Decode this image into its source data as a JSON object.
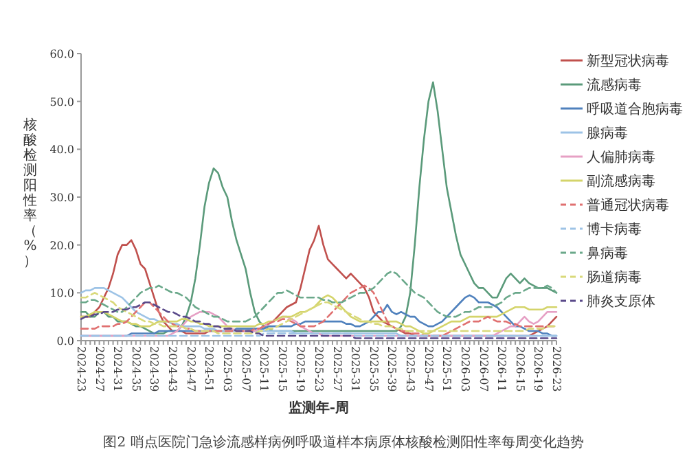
{
  "chart_data": {
    "type": "line",
    "xlabel": "监测年-周",
    "ylabel": "核酸检测阳性率（%）",
    "annotations": [
      "图2 哨点医院门急诊流感样病例呼吸道样本病原体核酸检测阳性率每周变化趋势"
    ],
    "ylim": [
      0,
      60
    ],
    "yticks": [
      {
        "value": 0,
        "label": "0.0"
      },
      {
        "value": 10,
        "label": "10.0"
      },
      {
        "value": 20,
        "label": "20.0"
      },
      {
        "value": 30,
        "label": "30.0"
      },
      {
        "value": 40,
        "label": "40.0"
      },
      {
        "value": 50,
        "label": "50.0"
      },
      {
        "value": 60,
        "label": "60.0"
      }
    ],
    "grid": false,
    "legend": "right",
    "marker": "none",
    "categories": [
      "2024-23",
      null,
      null,
      null,
      "2024-27",
      null,
      null,
      null,
      "2024-31",
      null,
      null,
      null,
      "2024-35",
      null,
      null,
      null,
      "2024-39",
      null,
      null,
      null,
      "2024-43",
      null,
      null,
      null,
      "2024-47",
      null,
      null,
      null,
      "2024-51",
      null,
      null,
      null,
      "2025-03",
      null,
      null,
      null,
      "2025-07",
      null,
      null,
      null,
      "2025-11",
      null,
      null,
      null,
      "2025-15",
      null,
      null,
      null,
      "2025-19",
      null,
      null,
      null,
      "2025-23",
      null,
      null,
      null,
      "2025-27",
      null,
      null,
      null,
      "2025-31",
      null,
      null,
      null,
      "2025-35",
      null,
      null,
      null,
      "2025-39",
      null,
      null,
      null,
      "2025-43",
      null,
      null,
      null,
      "2025-47",
      null,
      null,
      null,
      "2025-51",
      null,
      null,
      null,
      "2026-03",
      null,
      null,
      null,
      "2026-07",
      null,
      null,
      null,
      "2026-11",
      null,
      null,
      null,
      "2026-15",
      null,
      null,
      null,
      "2026-19",
      null,
      null,
      null,
      "2026-23"
    ],
    "series": [
      {
        "name": "新型冠状病毒",
        "color": "#c0504d",
        "line_style": "solid",
        "values": [
          5,
          5,
          5,
          6,
          7,
          9,
          11,
          14,
          18,
          20,
          20,
          21,
          19,
          16,
          15,
          12,
          9,
          6,
          4,
          3,
          2,
          2,
          2,
          1.5,
          1.5,
          1.5,
          1.5,
          1.5,
          2,
          2,
          2,
          2,
          2,
          2,
          2,
          2,
          2,
          2,
          2,
          2.5,
          3,
          3.5,
          4,
          5,
          6,
          7,
          7.5,
          8,
          11,
          15,
          19,
          21,
          24,
          20,
          17,
          16,
          15,
          14,
          13,
          14,
          13,
          12,
          11,
          9,
          6,
          5,
          4,
          3.5,
          3,
          2.5,
          2,
          1.5,
          1.5,
          1,
          1,
          1,
          1,
          1,
          1,
          1,
          1,
          1,
          1,
          1,
          1,
          1,
          1,
          1,
          1,
          1,
          1,
          1,
          1,
          1,
          1,
          1,
          1,
          1,
          1,
          1.5,
          2,
          2.5,
          3,
          4,
          5
        ]
      },
      {
        "name": "流感病毒",
        "color": "#5a9a7a",
        "line_style": "solid",
        "values": [
          6,
          6,
          5,
          5,
          6,
          6,
          5,
          5,
          4,
          4,
          4,
          3.5,
          3,
          3,
          2.5,
          2,
          1.5,
          1.5,
          1.5,
          2,
          2,
          2,
          3,
          5,
          8,
          13,
          20,
          28,
          33,
          36,
          35,
          32,
          30,
          25,
          21,
          18,
          15,
          10,
          6,
          4,
          3,
          2.5,
          2,
          2,
          2,
          2,
          2,
          2,
          2,
          2,
          2,
          2,
          2,
          2,
          2,
          2,
          2,
          2,
          2,
          2,
          2,
          2,
          2,
          2,
          2,
          2,
          2,
          2,
          2,
          2,
          3,
          5,
          10,
          20,
          32,
          42,
          50,
          54,
          48,
          40,
          32,
          27,
          22,
          18,
          16,
          14,
          12,
          11,
          11,
          10,
          9,
          9,
          11,
          13,
          14,
          13,
          12,
          13,
          12,
          11.5,
          11,
          11,
          11,
          10.5,
          10
        ]
      },
      {
        "name": "呼吸道合胞病毒",
        "color": "#4f81bd",
        "line_style": "solid",
        "values": [
          1,
          1,
          1,
          1,
          1,
          1,
          1,
          1,
          1,
          1,
          1,
          1.5,
          1.5,
          1.5,
          1.5,
          1.5,
          1.5,
          2,
          2,
          2,
          2,
          2,
          2,
          2,
          2,
          2,
          2,
          2,
          2,
          2,
          2,
          2,
          2,
          2,
          2.5,
          2.5,
          2.5,
          2.5,
          2.5,
          2.5,
          2.5,
          3,
          3,
          3,
          3,
          3,
          3,
          3.5,
          3.5,
          4,
          4,
          4,
          4,
          4,
          4,
          4,
          4,
          4,
          3.5,
          3.5,
          3,
          3,
          3.5,
          4,
          5,
          6,
          6,
          7.5,
          6,
          5.5,
          6,
          5.5,
          5,
          5,
          4,
          3.5,
          3,
          3,
          3.5,
          4,
          5,
          6,
          7,
          8,
          9,
          9.5,
          9,
          8,
          8,
          8,
          7.5,
          7,
          6,
          5,
          4,
          3,
          3,
          2.5,
          2,
          2,
          2,
          1.5,
          1.5,
          1,
          1
        ]
      },
      {
        "name": "腺病毒",
        "color": "#9dc3e6",
        "line_style": "solid",
        "values": [
          10,
          10.5,
          10.5,
          11,
          11,
          11,
          10.5,
          10,
          9.5,
          9,
          8,
          7,
          6,
          5.5,
          5,
          4.5,
          4.5,
          4,
          4,
          4,
          3.5,
          3.5,
          3,
          3,
          3,
          3,
          3,
          2.5,
          2.5,
          2.5,
          2,
          2,
          2,
          2,
          2,
          2,
          2,
          2,
          2,
          2,
          2,
          2,
          2,
          2,
          2,
          2,
          2,
          1.5,
          1.5,
          1.5,
          1.5,
          1.5,
          1.5,
          1.5,
          1.5,
          1.5,
          1.5,
          1.5,
          1.5,
          1.5,
          1.5,
          1.5,
          1.5,
          1.5,
          1.5,
          1.5,
          1.5,
          1.5,
          1.5,
          1.5,
          1,
          1,
          1,
          1,
          1,
          1,
          1,
          1,
          1,
          1,
          1,
          1,
          1,
          1,
          1,
          1,
          1,
          1,
          1,
          1,
          1,
          1,
          1,
          1,
          1,
          1,
          1,
          1,
          1,
          1,
          1,
          1,
          1,
          1,
          1
        ]
      },
      {
        "name": "人偏肺病毒",
        "color": "#e6a0c4",
        "line_style": "solid",
        "values": [
          1,
          1,
          1,
          1,
          1,
          1,
          1,
          1,
          1,
          1,
          1,
          1,
          1,
          1,
          1,
          1,
          1,
          1,
          1,
          1,
          1.5,
          2,
          3,
          4,
          5,
          5.5,
          6,
          6,
          6,
          5.5,
          5,
          4,
          3,
          2.5,
          2,
          2,
          2,
          2,
          2,
          2.5,
          3,
          3.5,
          4,
          4.5,
          5,
          5,
          4.5,
          4,
          3,
          2.5,
          2,
          1.5,
          1.5,
          1,
          1,
          1,
          1,
          1,
          1,
          1,
          1,
          1,
          1,
          1,
          1,
          1,
          1,
          1,
          1,
          1,
          1,
          1,
          1,
          1,
          1,
          1,
          1,
          1,
          1,
          1,
          1,
          1,
          1,
          1,
          1,
          1,
          1,
          1,
          1,
          1,
          1,
          1.5,
          2,
          2.5,
          3,
          3,
          4,
          5,
          4,
          3.5,
          4,
          5,
          6,
          6,
          6
        ]
      },
      {
        "name": "副流感病毒",
        "color": "#d4d46a",
        "line_style": "solid",
        "values": [
          5,
          5,
          5.5,
          6,
          6,
          6,
          5.5,
          5,
          4.5,
          4,
          4,
          3.5,
          3.5,
          3,
          3,
          3,
          3.5,
          4,
          4,
          4,
          4,
          4,
          4.5,
          4.5,
          4,
          4,
          3.5,
          3.5,
          3,
          3,
          3,
          3,
          3,
          3,
          3,
          3,
          3,
          3,
          3,
          3.5,
          3.5,
          4,
          4,
          4.5,
          5,
          5,
          5,
          5.5,
          6,
          6,
          6.5,
          7,
          8,
          9,
          9.5,
          9,
          8,
          7,
          6,
          5,
          4.5,
          4,
          4,
          4,
          4,
          4,
          4,
          4,
          4,
          4,
          3.5,
          3,
          3,
          2.5,
          2,
          1.5,
          1.5,
          2,
          2.5,
          3,
          3.5,
          4,
          4,
          4,
          4.5,
          5,
          5,
          5,
          5,
          5,
          5,
          5,
          5.5,
          6,
          6.5,
          7,
          7,
          7,
          6.5,
          6.5,
          6.5,
          6.5,
          7,
          7,
          7
        ]
      },
      {
        "name": "普通冠状病毒",
        "color": "#e07070",
        "line_style": "dashed",
        "values": [
          2.5,
          2.5,
          2.5,
          2.5,
          3,
          3,
          3,
          3,
          3.5,
          3.5,
          4,
          5,
          6,
          7,
          8,
          8,
          7,
          6,
          5,
          4,
          3.5,
          3,
          3,
          2.5,
          2.5,
          2,
          2,
          2,
          2,
          2,
          2,
          2,
          2,
          2,
          2,
          2,
          2,
          2,
          2.5,
          2.5,
          3,
          3.5,
          4,
          4,
          4.5,
          4.5,
          4,
          3.5,
          3,
          3,
          3,
          3,
          3.5,
          4,
          5,
          6,
          7,
          8,
          9,
          10,
          10.5,
          11,
          11.5,
          11,
          10,
          8,
          6,
          4,
          3,
          2.5,
          2,
          2,
          1.5,
          1.5,
          1.5,
          1,
          1,
          1,
          1,
          1,
          1.5,
          2,
          2.5,
          3,
          3.5,
          4,
          4,
          4,
          4.5,
          5,
          4.5,
          4,
          4,
          4,
          3.5,
          3.5,
          3,
          3,
          3,
          3,
          3,
          3,
          3,
          3,
          3
        ]
      },
      {
        "name": "博卡病毒",
        "color": "#9dc3e6",
        "line_style": "dashed",
        "values": [
          1,
          1,
          1,
          1,
          1,
          1,
          1,
          1,
          1,
          1,
          1,
          1,
          1,
          1,
          1,
          1,
          1,
          1,
          1,
          1,
          1,
          1,
          1,
          1,
          1,
          1,
          1,
          1,
          1,
          1,
          1,
          1,
          1,
          1,
          1,
          1,
          1,
          1,
          1,
          1,
          1.5,
          1.5,
          1.5,
          1.5,
          1.5,
          1.5,
          1.5,
          1.5,
          1.5,
          1.5,
          1.5,
          1.5,
          1.5,
          1.5,
          1.5,
          1.5,
          1.5,
          1.5,
          1.5,
          1.5,
          1,
          1,
          1,
          1,
          1,
          1,
          1,
          1,
          1,
          1,
          1,
          1,
          1,
          1,
          1,
          1,
          1,
          1,
          1,
          1,
          1,
          1,
          1,
          1,
          1,
          1,
          1,
          1,
          1,
          1,
          1,
          1,
          1,
          1,
          1,
          1,
          1,
          1,
          1,
          1,
          1,
          1,
          1,
          1,
          1
        ]
      },
      {
        "name": "鼻病毒",
        "color": "#6aa88a",
        "line_style": "dashed",
        "values": [
          8,
          8,
          8.5,
          8.5,
          8,
          7.5,
          7,
          6.5,
          6,
          6,
          7,
          8,
          9,
          10,
          10.5,
          11,
          11,
          11.5,
          11,
          10.5,
          10,
          10,
          9.5,
          9,
          8,
          7,
          6.5,
          6,
          5.5,
          5,
          5,
          4.5,
          4,
          4,
          4,
          4,
          4,
          4.5,
          5,
          6,
          7,
          8,
          9,
          10,
          10,
          10.5,
          10,
          9.5,
          9,
          9,
          9,
          9,
          9,
          8.5,
          8.5,
          8,
          8,
          8,
          8.5,
          9,
          9.5,
          10,
          10,
          10.5,
          11,
          12,
          13,
          14,
          14.5,
          14,
          13,
          12,
          11,
          10,
          9.5,
          9,
          8,
          7,
          6,
          5.5,
          5,
          5,
          5,
          5.5,
          6,
          6,
          6.5,
          7,
          7,
          7,
          7,
          7.5,
          8,
          9,
          9.5,
          10,
          10,
          10.5,
          11,
          11,
          11,
          11,
          11.5,
          11,
          10
        ]
      },
      {
        "name": "肠道病毒",
        "color": "#d9d97a",
        "line_style": "dashed",
        "values": [
          9,
          9,
          9.5,
          10,
          9.5,
          9,
          8.5,
          8,
          7,
          6.5,
          6,
          5.5,
          5,
          4.5,
          4,
          4,
          3.5,
          3.5,
          3,
          3,
          3,
          3,
          3,
          2.5,
          2.5,
          2,
          2,
          2,
          2,
          2,
          1.5,
          1.5,
          1.5,
          1.5,
          1.5,
          1.5,
          1.5,
          1.5,
          1.5,
          2,
          2,
          2.5,
          2.5,
          3,
          3.5,
          4,
          4.5,
          5,
          5.5,
          6,
          6.5,
          7,
          7.5,
          8,
          8,
          7.5,
          7,
          6.5,
          6,
          5.5,
          5,
          4.5,
          4,
          4,
          3.5,
          3.5,
          3,
          3,
          3,
          2.5,
          2.5,
          2,
          2,
          2,
          2,
          2,
          2,
          2,
          2,
          2,
          2,
          2,
          2,
          2,
          2,
          2,
          2,
          2,
          2,
          2,
          2,
          2,
          2,
          2,
          2,
          2,
          2,
          2,
          2.5,
          2.5,
          2.5,
          2.5,
          3,
          3,
          3
        ]
      },
      {
        "name": "肺炎支原体",
        "color": "#5a4a8a",
        "line_style": "dashed",
        "values": [
          4.5,
          5,
          5,
          5.5,
          5.5,
          6,
          6,
          6,
          6.5,
          6.5,
          6.5,
          7,
          7,
          7.5,
          8,
          8,
          7.5,
          7,
          6.5,
          6,
          6,
          5.5,
          5,
          5,
          4.5,
          4,
          4,
          3.5,
          3.5,
          3,
          3,
          2.5,
          2.5,
          2.5,
          2,
          2,
          2,
          2,
          1.5,
          1.5,
          1,
          1,
          1,
          1,
          1,
          1,
          1,
          1,
          1,
          1,
          1,
          1,
          1,
          1,
          1,
          1,
          1,
          1,
          1,
          1,
          0.5,
          0.5,
          0.5,
          0.5,
          0.5,
          0.5,
          0.5,
          0.5,
          0.5,
          0.5,
          0.5,
          0.5,
          0.5,
          0.5,
          0.5,
          0.5,
          0.5,
          0.5,
          0.5,
          0.5,
          0.5,
          0.5,
          0.5,
          0.5,
          0.5,
          0.5,
          0.5,
          0.5,
          0.5,
          0.5,
          0.5,
          0.5,
          0.5,
          0.5,
          0.5,
          0.5,
          0.5,
          0.5,
          0.5,
          0.5,
          0.5,
          0.5,
          0.5,
          0.5,
          0.5
        ]
      }
    ]
  }
}
